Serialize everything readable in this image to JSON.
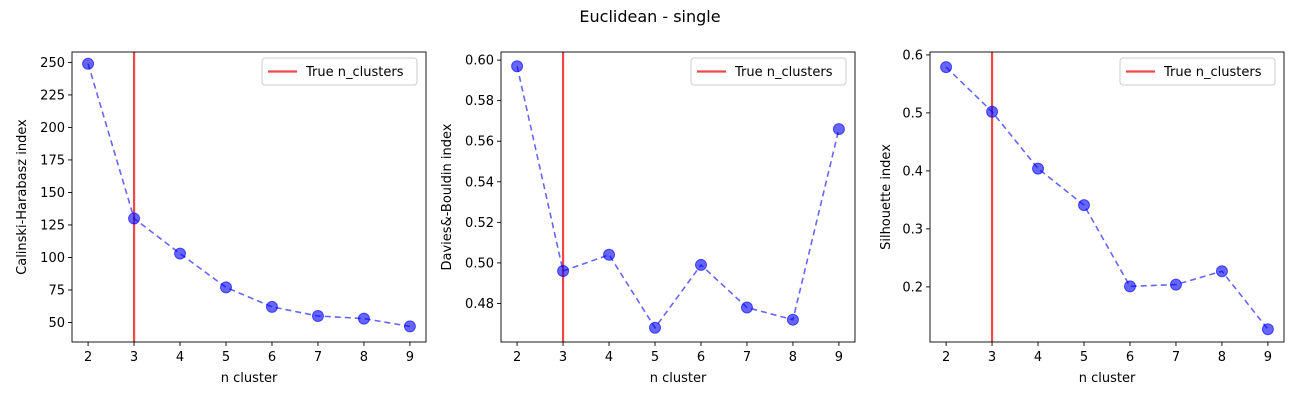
{
  "figure": {
    "title": "Euclidean - single"
  },
  "colors": {
    "series": "#0000ff",
    "reference_line": "#ee3333"
  },
  "chart_data": [
    {
      "type": "line",
      "xlabel": "n cluster",
      "ylabel": "Calinski-Harabasz index",
      "x": [
        2,
        3,
        4,
        5,
        6,
        7,
        8,
        9
      ],
      "xticks": [
        2,
        3,
        4,
        5,
        6,
        7,
        8,
        9
      ],
      "xlim": [
        1.65,
        9.35
      ],
      "ylim": [
        35,
        258
      ],
      "yticks": [
        50,
        75,
        100,
        125,
        150,
        175,
        200,
        225,
        250
      ],
      "ytick_labels": [
        "50",
        "75",
        "100",
        "125",
        "150",
        "175",
        "200",
        "225",
        "250"
      ],
      "series": [
        {
          "values": [
            249,
            130,
            103,
            77,
            62,
            55,
            53,
            47
          ],
          "style": "dashed line with circle markers"
        }
      ],
      "reference_line": {
        "x": 3,
        "label": "True n_clusters"
      },
      "legend": "top-right",
      "grid": false
    },
    {
      "type": "line",
      "xlabel": "n cluster",
      "ylabel": "Davies&-Bouldin index",
      "x": [
        2,
        3,
        4,
        5,
        6,
        7,
        8,
        9
      ],
      "xticks": [
        2,
        3,
        4,
        5,
        6,
        7,
        8,
        9
      ],
      "xlim": [
        1.65,
        9.35
      ],
      "ylim": [
        0.461,
        0.604
      ],
      "yticks": [
        0.48,
        0.5,
        0.52,
        0.54,
        0.56,
        0.58,
        0.6
      ],
      "ytick_labels": [
        "0.48",
        "0.50",
        "0.52",
        "0.54",
        "0.56",
        "0.58",
        "0.60"
      ],
      "series": [
        {
          "values": [
            0.597,
            0.496,
            0.504,
            0.468,
            0.499,
            0.478,
            0.472,
            0.566
          ],
          "style": "dashed line with circle markers"
        }
      ],
      "reference_line": {
        "x": 3,
        "label": "True n_clusters"
      },
      "legend": "top-right",
      "grid": false
    },
    {
      "type": "line",
      "xlabel": "n cluster",
      "ylabel": "Silhouette index",
      "x": [
        2,
        3,
        4,
        5,
        6,
        7,
        8,
        9
      ],
      "xticks": [
        2,
        3,
        4,
        5,
        6,
        7,
        8,
        9
      ],
      "xlim": [
        1.65,
        9.35
      ],
      "ylim": [
        0.105,
        0.605
      ],
      "yticks": [
        0.2,
        0.3,
        0.4,
        0.5,
        0.6
      ],
      "ytick_labels": [
        "0.2",
        "0.3",
        "0.4",
        "0.5",
        "0.6"
      ],
      "series": [
        {
          "values": [
            0.579,
            0.502,
            0.404,
            0.341,
            0.201,
            0.204,
            0.227,
            0.127
          ],
          "style": "dashed line with circle markers"
        }
      ],
      "reference_line": {
        "x": 3,
        "label": "True n_clusters"
      },
      "legend": "top-right",
      "grid": false
    }
  ]
}
